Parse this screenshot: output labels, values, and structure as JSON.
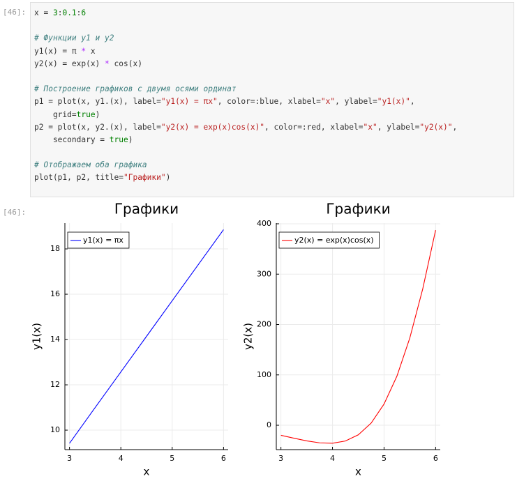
{
  "input_prompt": "[46]:",
  "code_blocks": [
    [
      "x = 3:0.1:6"
    ],
    [
      "# Функции y1 и y2",
      "y1(x) = π * x",
      "y2(x) = exp(x) * cos(x)"
    ],
    [
      "# Построение графиков с двумя осями ординат",
      "p1 = plot(x, y1.(x), label=\"y1(x) = πx\", color=:blue, xlabel=\"x\", ylabel=\"y1(x)\",",
      "    grid=true)",
      "p2 = plot(x, y2.(x), label=\"y2(x) = exp(x)cos(x)\", color=:red, xlabel=\"x\", ylabel=\"y2(x)\",",
      "    secondary = true)"
    ],
    [
      "# Отображаем оба графика",
      "plot(p1, p2, title=\"Графики\")"
    ]
  ],
  "output_prompt": "[46]:",
  "chart_data": [
    {
      "type": "line",
      "title": "Графики",
      "xlabel": "x",
      "ylabel": "y1(x)",
      "x": [
        3,
        3.5,
        4,
        4.5,
        5,
        5.5,
        6
      ],
      "series": [
        {
          "name": "y1(x) = πx",
          "color": "#0000ff",
          "values": [
            9.42,
            11.0,
            12.57,
            14.14,
            15.71,
            17.28,
            18.85
          ]
        }
      ],
      "xlim": [
        2.91,
        6.09
      ],
      "ylim": [
        9.14,
        19.14
      ],
      "xticks": [
        3,
        4,
        5,
        6
      ],
      "yticks": [
        10,
        12,
        14,
        16,
        18
      ],
      "grid": true,
      "legend": "top-left"
    },
    {
      "type": "line",
      "title": "Графики",
      "xlabel": "x",
      "ylabel": "y2(x)",
      "x": [
        3,
        3.25,
        3.5,
        3.75,
        4,
        4.25,
        4.5,
        4.75,
        5,
        5.25,
        5.5,
        5.75,
        6
      ],
      "series": [
        {
          "name": "y2(x) = exp(x)cos(x)",
          "color": "#ff0000",
          "values": [
            -19.9,
            -25.6,
            -31.0,
            -34.9,
            -35.7,
            -31.3,
            -19.0,
            4.3,
            42.1,
            97.6,
            173.4,
            270.6,
            387.4
          ]
        }
      ],
      "xlim": [
        2.91,
        6.09
      ],
      "ylim": [
        -48.4,
        401.4
      ],
      "xticks": [
        3,
        4,
        5,
        6
      ],
      "yticks": [
        0,
        100,
        200,
        300,
        400
      ],
      "grid": true,
      "legend": "top-left"
    }
  ]
}
